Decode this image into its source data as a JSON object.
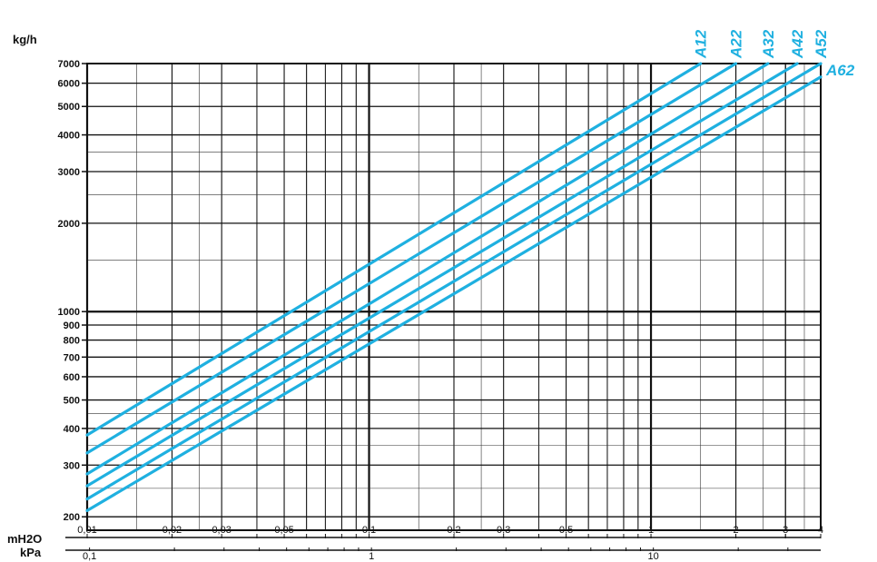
{
  "chart_data": {
    "type": "line",
    "x_scale": "log",
    "y_scale": "log",
    "grid": true,
    "y_axis_label": "kg/h",
    "x_axis_label_primary": "mH2O",
    "x_axis_label_secondary": "kPa",
    "xlim_mH2O": [
      0.01,
      4
    ],
    "ylim_kgh": [
      180,
      7000
    ],
    "y_ticks": [
      {
        "value": 200,
        "label": "200"
      },
      {
        "value": 300,
        "label": "300"
      },
      {
        "value": 400,
        "label": "400"
      },
      {
        "value": 500,
        "label": "500"
      },
      {
        "value": 600,
        "label": "600"
      },
      {
        "value": 700,
        "label": "700"
      },
      {
        "value": 800,
        "label": "800"
      },
      {
        "value": 900,
        "label": "900"
      },
      {
        "value": 1000,
        "label": "1000"
      },
      {
        "value": 2000,
        "label": "2000"
      },
      {
        "value": 3000,
        "label": "3000"
      },
      {
        "value": 4000,
        "label": "4000"
      },
      {
        "value": 5000,
        "label": "5000"
      },
      {
        "value": 6000,
        "label": "6000"
      },
      {
        "value": 7000,
        "label": "7000"
      }
    ],
    "x_ticks_mH2O": [
      {
        "value": 0.01,
        "label": "0,01"
      },
      {
        "value": 0.02,
        "label": "0,02"
      },
      {
        "value": 0.03,
        "label": "0,03"
      },
      {
        "value": 0.05,
        "label": "0,05"
      },
      {
        "value": 0.1,
        "label": "0,1"
      },
      {
        "value": 0.2,
        "label": "0,2"
      },
      {
        "value": 0.3,
        "label": "0,3"
      },
      {
        "value": 0.5,
        "label": "0,5"
      },
      {
        "value": 1,
        "label": "1"
      },
      {
        "value": 2,
        "label": "2"
      },
      {
        "value": 3,
        "label": "3"
      },
      {
        "value": 4,
        "label": "4"
      }
    ],
    "x_ticks_kPa": [
      {
        "value": 0.1,
        "label": "0,1"
      },
      {
        "value": 1,
        "label": "1"
      },
      {
        "value": 10,
        "label": "10"
      }
    ],
    "series_color": "#1fb0e0",
    "series": [
      {
        "name": "A12",
        "x": [
          0.01,
          1.5
        ],
        "y": [
          380,
          7000
        ]
      },
      {
        "name": "A22",
        "x": [
          0.01,
          2.0
        ],
        "y": [
          330,
          7000
        ]
      },
      {
        "name": "A32",
        "x": [
          0.01,
          2.6
        ],
        "y": [
          280,
          7000
        ]
      },
      {
        "name": "A42",
        "x": [
          0.01,
          3.3
        ],
        "y": [
          255,
          7000
        ]
      },
      {
        "name": "A52",
        "x": [
          0.01,
          4.0
        ],
        "y": [
          230,
          7000
        ]
      },
      {
        "name": "A62",
        "x": [
          0.01,
          4.0
        ],
        "y": [
          210,
          6300
        ]
      }
    ]
  }
}
